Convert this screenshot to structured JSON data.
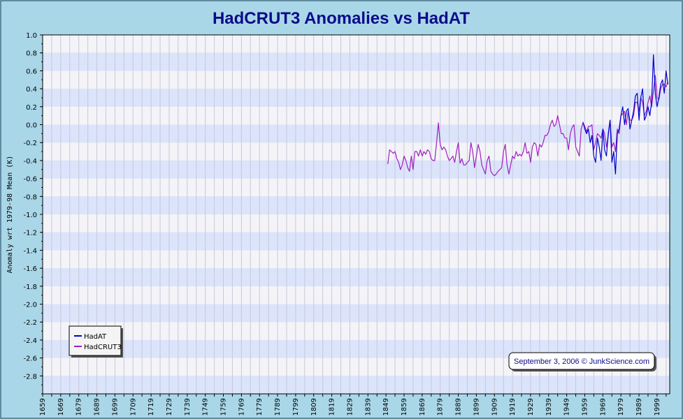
{
  "chart_data": {
    "type": "line",
    "title": "HadCRUT3 Anomalies vs HadAT",
    "ylabel": "Anomaly wrt 1979-98 Mean (K)",
    "xlabel": "",
    "xlim": [
      1659,
      2006
    ],
    "ylim": [
      -3.0,
      1.0
    ],
    "y_ticks": [
      "1.0",
      "0.8",
      "0.6",
      "0.4",
      "0.2",
      "0.0",
      "-0.2",
      "-0.4",
      "-0.6",
      "-0.8",
      "-1.0",
      "-1.2",
      "-1.4",
      "-1.6",
      "-1.8",
      "-2.0",
      "-2.2",
      "-2.4",
      "-2.6",
      "-2.8"
    ],
    "x_ticks": [
      "1659",
      "1669",
      "1679",
      "1689",
      "1699",
      "1709",
      "1719",
      "1729",
      "1739",
      "1749",
      "1759",
      "1769",
      "1779",
      "1789",
      "1799",
      "1809",
      "1819",
      "1829",
      "1839",
      "1849",
      "1859",
      "1869",
      "1879",
      "1889",
      "1899",
      "1909",
      "1919",
      "1929",
      "1939",
      "1949",
      "1959",
      "1969",
      "1979",
      "1989",
      "1999"
    ],
    "grid": true,
    "legend_position": "bottom-left",
    "annotation": "September 3, 2006 © JunkScience.com",
    "series": [
      {
        "name": "HadAT",
        "color": "#0000cc",
        "x": [
          1958,
          1959,
          1960,
          1961,
          1962,
          1963,
          1964,
          1965,
          1966,
          1967,
          1968,
          1969,
          1970,
          1971,
          1972,
          1973,
          1974,
          1975,
          1976,
          1977,
          1978,
          1979,
          1980,
          1981,
          1982,
          1983,
          1984,
          1985,
          1986,
          1987,
          1988,
          1989,
          1990,
          1991,
          1992,
          1993,
          1994,
          1995,
          1996,
          1997,
          1998,
          1999,
          2000,
          2001,
          2002,
          2003,
          2004,
          2005
        ],
        "y": [
          0.03,
          -0.05,
          -0.1,
          -0.05,
          -0.2,
          -0.12,
          -0.35,
          -0.42,
          -0.15,
          -0.25,
          -0.4,
          -0.05,
          -0.28,
          -0.35,
          -0.1,
          0.05,
          -0.42,
          -0.3,
          -0.55,
          -0.1,
          -0.05,
          0.1,
          0.2,
          0.0,
          0.15,
          0.18,
          -0.05,
          0.05,
          0.15,
          0.32,
          0.35,
          0.05,
          0.3,
          0.4,
          0.05,
          0.1,
          0.2,
          0.1,
          0.25,
          0.78,
          0.35,
          0.2,
          0.3,
          0.45,
          0.5,
          0.35,
          0.6,
          0.45
        ]
      },
      {
        "name": "HadCRUT3",
        "color": "#a020c0",
        "x": [
          1850,
          1851,
          1852,
          1853,
          1854,
          1855,
          1856,
          1857,
          1858,
          1859,
          1860,
          1861,
          1862,
          1863,
          1864,
          1865,
          1866,
          1867,
          1868,
          1869,
          1870,
          1871,
          1872,
          1873,
          1874,
          1875,
          1876,
          1877,
          1878,
          1879,
          1880,
          1881,
          1882,
          1883,
          1884,
          1885,
          1886,
          1887,
          1888,
          1889,
          1890,
          1891,
          1892,
          1893,
          1894,
          1895,
          1896,
          1897,
          1898,
          1899,
          1900,
          1901,
          1902,
          1903,
          1904,
          1905,
          1906,
          1907,
          1908,
          1909,
          1910,
          1911,
          1912,
          1913,
          1914,
          1915,
          1916,
          1917,
          1918,
          1919,
          1920,
          1921,
          1922,
          1923,
          1924,
          1925,
          1926,
          1927,
          1928,
          1929,
          1930,
          1931,
          1932,
          1933,
          1934,
          1935,
          1936,
          1937,
          1938,
          1939,
          1940,
          1941,
          1942,
          1943,
          1944,
          1945,
          1946,
          1947,
          1948,
          1949,
          1950,
          1951,
          1952,
          1953,
          1954,
          1955,
          1956,
          1957,
          1958,
          1959,
          1960,
          1961,
          1962,
          1963,
          1964,
          1965,
          1966,
          1967,
          1968,
          1969,
          1970,
          1971,
          1972,
          1973,
          1974,
          1975,
          1976,
          1977,
          1978,
          1979,
          1980,
          1981,
          1982,
          1983,
          1984,
          1985,
          1986,
          1987,
          1988,
          1989,
          1990,
          1991,
          1992,
          1993,
          1994,
          1995,
          1996,
          1997,
          1998,
          1999,
          2000,
          2001,
          2002,
          2003,
          2004,
          2005
        ],
        "y": [
          -0.44,
          -0.28,
          -0.3,
          -0.32,
          -0.3,
          -0.38,
          -0.42,
          -0.5,
          -0.45,
          -0.35,
          -0.4,
          -0.48,
          -0.52,
          -0.35,
          -0.5,
          -0.3,
          -0.3,
          -0.35,
          -0.28,
          -0.35,
          -0.3,
          -0.33,
          -0.28,
          -0.3,
          -0.38,
          -0.4,
          -0.4,
          -0.2,
          0.02,
          -0.22,
          -0.28,
          -0.25,
          -0.28,
          -0.35,
          -0.4,
          -0.38,
          -0.35,
          -0.42,
          -0.3,
          -0.2,
          -0.43,
          -0.38,
          -0.45,
          -0.45,
          -0.42,
          -0.4,
          -0.2,
          -0.3,
          -0.48,
          -0.35,
          -0.22,
          -0.3,
          -0.45,
          -0.5,
          -0.55,
          -0.4,
          -0.35,
          -0.52,
          -0.55,
          -0.57,
          -0.55,
          -0.52,
          -0.5,
          -0.48,
          -0.3,
          -0.22,
          -0.45,
          -0.55,
          -0.45,
          -0.35,
          -0.38,
          -0.3,
          -0.35,
          -0.33,
          -0.35,
          -0.3,
          -0.2,
          -0.32,
          -0.3,
          -0.42,
          -0.25,
          -0.2,
          -0.22,
          -0.35,
          -0.22,
          -0.25,
          -0.2,
          -0.12,
          -0.12,
          -0.08,
          0.0,
          0.05,
          -0.02,
          0.0,
          0.1,
          0.0,
          -0.1,
          -0.1,
          -0.15,
          -0.15,
          -0.28,
          -0.1,
          -0.03,
          0.0,
          -0.25,
          -0.3,
          -0.35,
          -0.05,
          0.02,
          -0.02,
          -0.08,
          -0.02,
          -0.02,
          0.0,
          -0.28,
          -0.2,
          -0.1,
          -0.12,
          -0.15,
          -0.05,
          -0.1,
          -0.25,
          -0.12,
          0.05,
          -0.25,
          -0.2,
          -0.3,
          -0.05,
          -0.1,
          0.1,
          0.12,
          0.15,
          0.0,
          0.15,
          0.05,
          0.05,
          0.1,
          0.25,
          0.25,
          0.15,
          0.3,
          0.25,
          0.1,
          0.15,
          0.25,
          0.32,
          0.2,
          0.38,
          0.55,
          0.3,
          0.28,
          0.4,
          0.45,
          0.45,
          0.42,
          0.48
        ]
      }
    ]
  }
}
